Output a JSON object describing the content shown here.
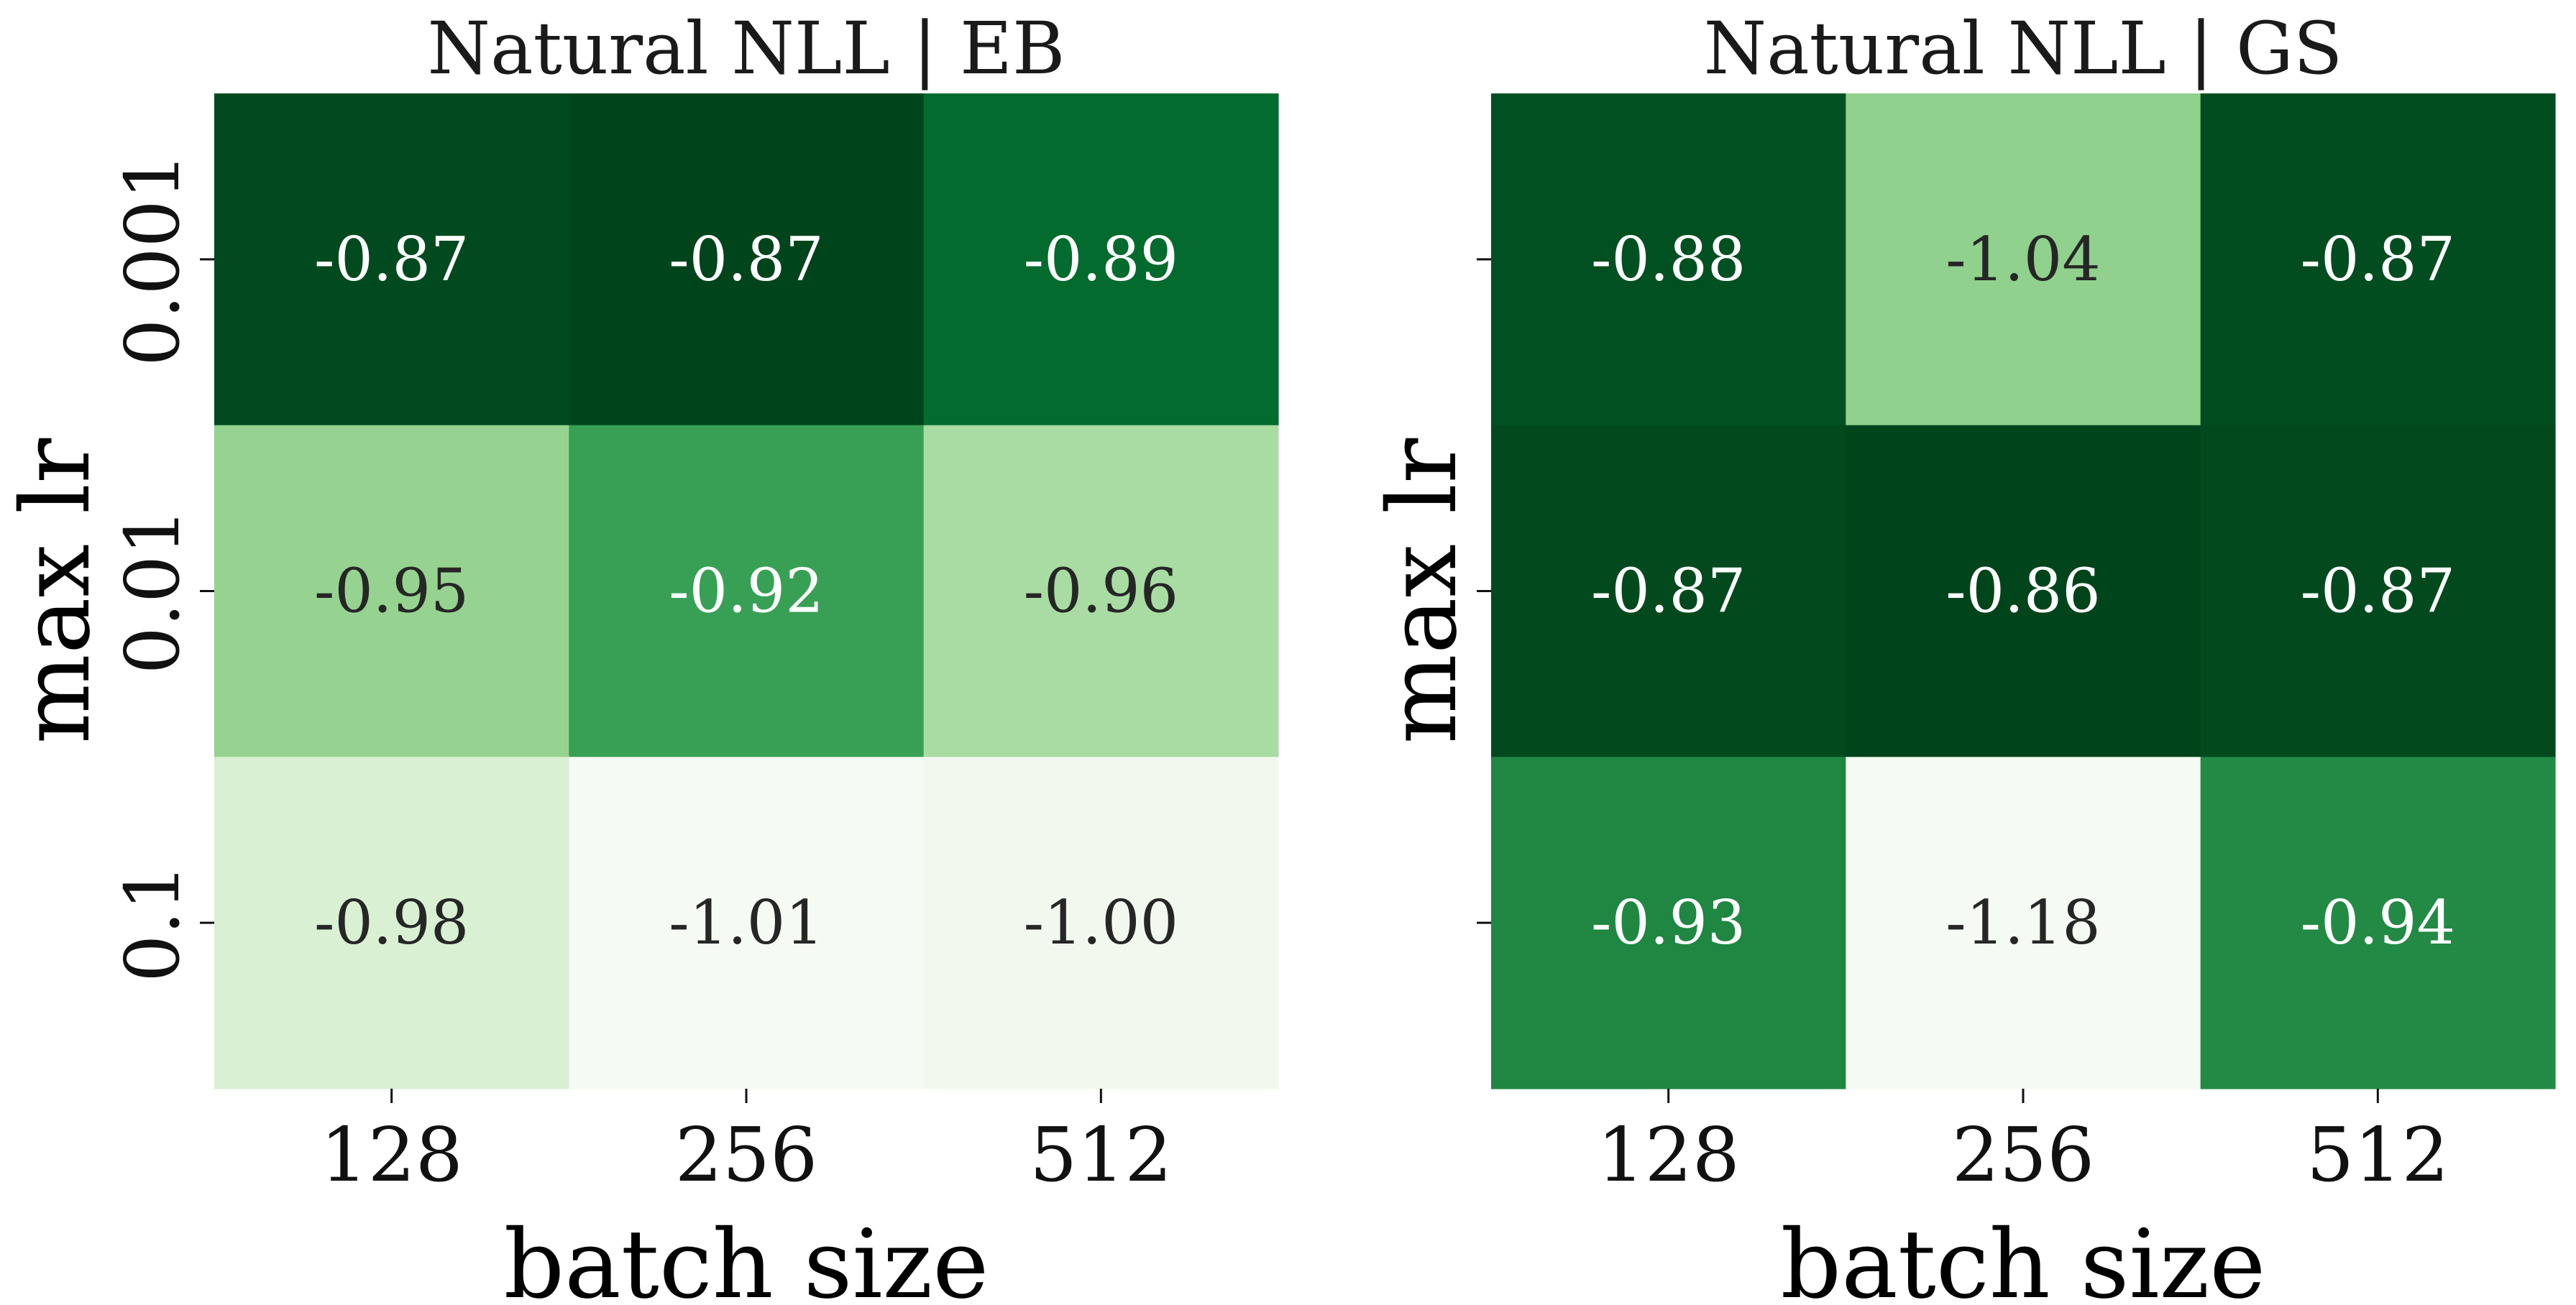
{
  "chart_data": [
    {
      "type": "heatmap",
      "title": "Natural NLL | EB",
      "xlabel": "batch size",
      "ylabel": "max lr",
      "x_categories": [
        "128",
        "256",
        "512"
      ],
      "y_categories": [
        "0.001",
        "0.01",
        "0.1"
      ],
      "values": [
        [
          -0.87,
          -0.87,
          -0.89
        ],
        [
          -0.95,
          -0.92,
          -0.96
        ],
        [
          -0.98,
          -1.01,
          -1.0
        ]
      ],
      "value_labels": [
        [
          "-0.87",
          "-0.87",
          "-0.89"
        ],
        [
          "-0.95",
          "-0.92",
          "-0.96"
        ],
        [
          "-0.98",
          "-1.01",
          "-1.00"
        ]
      ],
      "cell_colors": [
        [
          "#014a1f",
          "#00441b",
          "#026b2d"
        ],
        [
          "#96d390",
          "#38a055",
          "#a9dca3"
        ],
        [
          "#d9f0d3",
          "#f5fbf3",
          "#f1f9ee"
        ]
      ],
      "label_colors": [
        [
          "#ffffff",
          "#ffffff",
          "#ffffff"
        ],
        [
          "#262626",
          "#ffffff",
          "#262626"
        ],
        [
          "#262626",
          "#262626",
          "#262626"
        ]
      ],
      "colormap": "Greens",
      "show_y_tick_labels": true,
      "show_y_axis_label": true,
      "colorbar": false
    },
    {
      "type": "heatmap",
      "title": "Natural NLL | GS",
      "xlabel": "batch size",
      "ylabel": "max lr",
      "x_categories": [
        "128",
        "256",
        "512"
      ],
      "y_categories": [
        "0.001",
        "0.01",
        "0.1"
      ],
      "values": [
        [
          -0.88,
          -1.04,
          -0.87
        ],
        [
          -0.87,
          -0.86,
          -0.87
        ],
        [
          -0.93,
          -1.18,
          -0.94
        ]
      ],
      "value_labels": [
        [
          "-0.88",
          "-1.04",
          "-0.87"
        ],
        [
          "-0.87",
          "-0.86",
          "-0.87"
        ],
        [
          "-0.93",
          "-1.18",
          "-0.94"
        ]
      ],
      "cell_colors": [
        [
          "#005022",
          "#90d18d",
          "#024d20"
        ],
        [
          "#024a1e",
          "#00441b",
          "#024a1e"
        ],
        [
          "#1f8742",
          "#f5fbf3",
          "#228a44"
        ]
      ],
      "label_colors": [
        [
          "#ffffff",
          "#262626",
          "#ffffff"
        ],
        [
          "#ffffff",
          "#ffffff",
          "#ffffff"
        ],
        [
          "#ffffff",
          "#262626",
          "#ffffff"
        ]
      ],
      "colormap": "Greens",
      "show_y_tick_labels": false,
      "show_y_axis_label": true,
      "colorbar": false
    }
  ]
}
